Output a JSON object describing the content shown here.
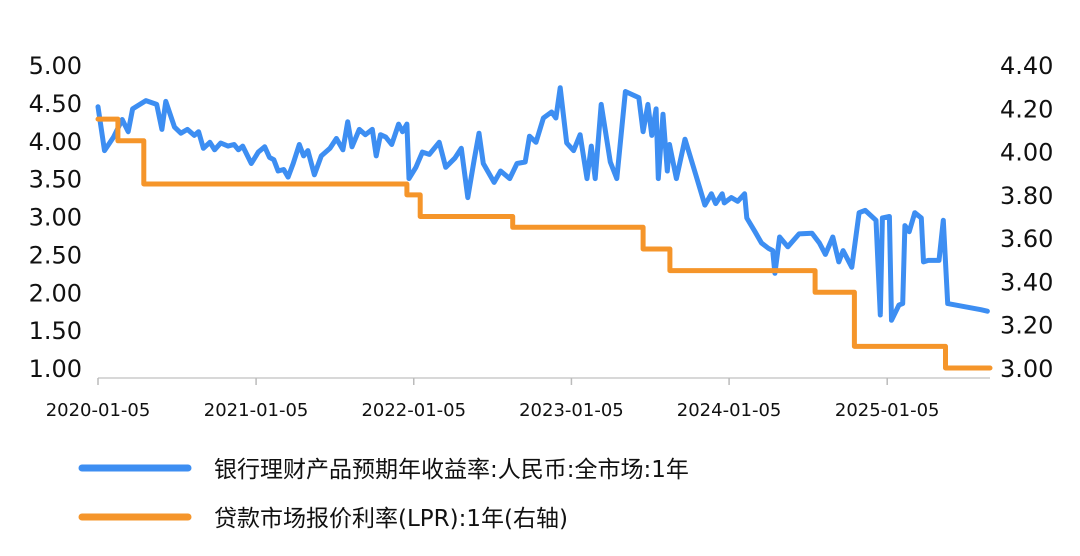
{
  "chart_data": {
    "type": "line",
    "title": "",
    "xlabel": "",
    "ylabel_left": "",
    "ylabel_right": "",
    "legend_position": "bottom",
    "grid": false,
    "x_ticks": [
      "2020-01-05",
      "2021-01-05",
      "2022-01-05",
      "2023-01-05",
      "2024-01-05",
      "2025-01-05"
    ],
    "y_left_ticks": [
      "1.00",
      "1.50",
      "2.00",
      "2.50",
      "3.00",
      "3.50",
      "4.00",
      "4.50",
      "5.00"
    ],
    "y_right_ticks": [
      "3.00",
      "3.20",
      "3.40",
      "3.60",
      "3.80",
      "4.00",
      "4.20",
      "4.40"
    ],
    "ylim_left": [
      1.0,
      5.0
    ],
    "ylim_right": [
      3.0,
      4.4
    ],
    "xlim": [
      "2020-01-05",
      "2025-08-31"
    ],
    "series": [
      {
        "name": "银行理财产品预期年收益率:人民币:全市场:1年",
        "axis": "left",
        "color": "#3d8ef2",
        "points": [
          [
            "2020-01-05",
            4.45
          ],
          [
            "2020-01-20",
            3.87
          ],
          [
            "2020-02-10",
            4.05
          ],
          [
            "2020-03-01",
            4.28
          ],
          [
            "2020-03-15",
            4.12
          ],
          [
            "2020-03-25",
            4.42
          ],
          [
            "2020-04-25",
            4.53
          ],
          [
            "2020-05-20",
            4.48
          ],
          [
            "2020-06-01",
            4.15
          ],
          [
            "2020-06-10",
            4.52
          ],
          [
            "2020-06-30",
            4.18
          ],
          [
            "2020-07-15",
            4.1
          ],
          [
            "2020-07-30",
            4.15
          ],
          [
            "2020-08-15",
            4.07
          ],
          [
            "2020-08-25",
            4.12
          ],
          [
            "2020-09-05",
            3.9
          ],
          [
            "2020-09-20",
            3.98
          ],
          [
            "2020-10-01",
            3.88
          ],
          [
            "2020-10-15",
            3.97
          ],
          [
            "2020-11-01",
            3.93
          ],
          [
            "2020-11-15",
            3.95
          ],
          [
            "2020-11-25",
            3.88
          ],
          [
            "2020-12-05",
            3.93
          ],
          [
            "2020-12-25",
            3.7
          ],
          [
            "2021-01-10",
            3.85
          ],
          [
            "2021-01-25",
            3.92
          ],
          [
            "2021-02-05",
            3.78
          ],
          [
            "2021-02-15",
            3.75
          ],
          [
            "2021-02-25",
            3.6
          ],
          [
            "2021-03-10",
            3.62
          ],
          [
            "2021-03-20",
            3.52
          ],
          [
            "2021-04-01",
            3.7
          ],
          [
            "2021-04-15",
            3.95
          ],
          [
            "2021-04-25",
            3.8
          ],
          [
            "2021-05-05",
            3.87
          ],
          [
            "2021-05-20",
            3.55
          ],
          [
            "2021-06-05",
            3.8
          ],
          [
            "2021-06-25",
            3.9
          ],
          [
            "2021-07-10",
            4.03
          ],
          [
            "2021-07-25",
            3.88
          ],
          [
            "2021-08-05",
            4.25
          ],
          [
            "2021-08-15",
            3.92
          ],
          [
            "2021-09-01",
            4.15
          ],
          [
            "2021-09-15",
            4.08
          ],
          [
            "2021-10-01",
            4.15
          ],
          [
            "2021-10-10",
            3.8
          ],
          [
            "2021-10-20",
            4.08
          ],
          [
            "2021-11-01",
            4.05
          ],
          [
            "2021-11-15",
            3.95
          ],
          [
            "2021-12-01",
            4.22
          ],
          [
            "2021-12-10",
            4.12
          ],
          [
            "2021-12-20",
            4.22
          ],
          [
            "2021-12-25",
            3.5
          ],
          [
            "2022-01-10",
            3.65
          ],
          [
            "2022-01-25",
            3.85
          ],
          [
            "2022-02-10",
            3.82
          ],
          [
            "2022-03-05",
            3.98
          ],
          [
            "2022-03-20",
            3.65
          ],
          [
            "2022-04-10",
            3.77
          ],
          [
            "2022-04-25",
            3.9
          ],
          [
            "2022-05-10",
            3.25
          ],
          [
            "2022-05-25",
            3.75
          ],
          [
            "2022-06-05",
            4.1
          ],
          [
            "2022-06-15",
            3.7
          ],
          [
            "2022-07-10",
            3.45
          ],
          [
            "2022-07-25",
            3.6
          ],
          [
            "2022-08-15",
            3.5
          ],
          [
            "2022-09-01",
            3.7
          ],
          [
            "2022-09-20",
            3.72
          ],
          [
            "2022-09-30",
            4.06
          ],
          [
            "2022-10-15",
            3.98
          ],
          [
            "2022-11-01",
            4.3
          ],
          [
            "2022-11-20",
            4.38
          ],
          [
            "2022-11-30",
            4.3
          ],
          [
            "2022-12-10",
            4.7
          ],
          [
            "2022-12-25",
            3.97
          ],
          [
            "2023-01-10",
            3.87
          ],
          [
            "2023-01-25",
            4.08
          ],
          [
            "2023-02-10",
            3.5
          ],
          [
            "2023-02-20",
            3.93
          ],
          [
            "2023-03-01",
            3.5
          ],
          [
            "2023-03-15",
            4.48
          ],
          [
            "2023-04-05",
            3.72
          ],
          [
            "2023-04-20",
            3.5
          ],
          [
            "2023-05-10",
            4.65
          ],
          [
            "2023-06-10",
            4.57
          ],
          [
            "2023-06-20",
            4.12
          ],
          [
            "2023-07-01",
            4.48
          ],
          [
            "2023-07-10",
            4.07
          ],
          [
            "2023-07-20",
            4.42
          ],
          [
            "2023-07-25",
            3.5
          ],
          [
            "2023-08-05",
            4.35
          ],
          [
            "2023-08-15",
            3.6
          ],
          [
            "2023-08-20",
            3.95
          ],
          [
            "2023-09-05",
            3.5
          ],
          [
            "2023-09-25",
            4.02
          ],
          [
            "2023-10-20",
            3.55
          ],
          [
            "2023-11-10",
            3.15
          ],
          [
            "2023-11-25",
            3.3
          ],
          [
            "2023-12-05",
            3.17
          ],
          [
            "2023-12-20",
            3.3
          ],
          [
            "2023-12-25",
            3.18
          ],
          [
            "2024-01-10",
            3.25
          ],
          [
            "2024-01-25",
            3.2
          ],
          [
            "2024-02-10",
            3.3
          ],
          [
            "2024-02-15",
            2.98
          ],
          [
            "2024-03-05",
            2.8
          ],
          [
            "2024-03-20",
            2.65
          ],
          [
            "2024-04-05",
            2.58
          ],
          [
            "2024-04-15",
            2.55
          ],
          [
            "2024-04-20",
            2.25
          ],
          [
            "2024-05-01",
            2.73
          ],
          [
            "2024-05-20",
            2.6
          ],
          [
            "2024-06-15",
            2.77
          ],
          [
            "2024-07-15",
            2.78
          ],
          [
            "2024-08-01",
            2.65
          ],
          [
            "2024-08-15",
            2.5
          ],
          [
            "2024-09-01",
            2.73
          ],
          [
            "2024-09-15",
            2.4
          ],
          [
            "2024-09-25",
            2.55
          ],
          [
            "2024-10-15",
            2.33
          ],
          [
            "2024-11-01",
            3.05
          ],
          [
            "2024-11-15",
            3.08
          ],
          [
            "2024-12-10",
            2.95
          ],
          [
            "2024-12-20",
            1.7
          ],
          [
            "2024-12-25",
            2.98
          ],
          [
            "2025-01-10",
            3.0
          ],
          [
            "2025-01-15",
            1.63
          ],
          [
            "2025-02-01",
            1.83
          ],
          [
            "2025-02-10",
            1.85
          ],
          [
            "2025-02-15",
            2.88
          ],
          [
            "2025-02-25",
            2.8
          ],
          [
            "2025-03-10",
            3.05
          ],
          [
            "2025-03-25",
            2.98
          ],
          [
            "2025-03-30",
            2.4
          ],
          [
            "2025-04-10",
            2.42
          ],
          [
            "2025-05-05",
            2.42
          ],
          [
            "2025-05-15",
            2.95
          ],
          [
            "2025-05-25",
            1.85
          ],
          [
            "2025-08-10",
            1.77
          ],
          [
            "2025-08-25",
            1.75
          ]
        ]
      },
      {
        "name": "贷款市场报价利率(LPR):1年(右轴)",
        "axis": "right",
        "color": "#f5952a",
        "points": [
          [
            "2020-01-05",
            4.15
          ],
          [
            "2020-02-20",
            4.05
          ],
          [
            "2020-04-20",
            3.85
          ],
          [
            "2021-12-20",
            3.8
          ],
          [
            "2022-01-20",
            3.7
          ],
          [
            "2022-08-22",
            3.65
          ],
          [
            "2023-06-20",
            3.55
          ],
          [
            "2023-08-21",
            3.45
          ],
          [
            "2024-07-22",
            3.35
          ],
          [
            "2024-10-21",
            3.1
          ],
          [
            "2025-05-20",
            3.0
          ],
          [
            "2025-08-31",
            3.0
          ]
        ]
      }
    ]
  }
}
